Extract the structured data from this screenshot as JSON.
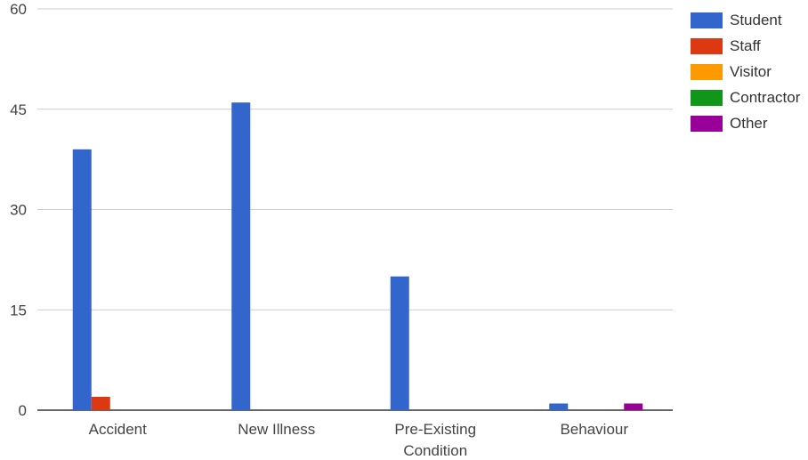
{
  "chart_data": {
    "type": "bar",
    "title": "",
    "xlabel": "",
    "ylabel": "",
    "categories": [
      "Accident",
      "New Illness",
      "Pre-Existing Condition",
      "Behaviour"
    ],
    "category_lines": [
      [
        "Accident"
      ],
      [
        "New Illness"
      ],
      [
        "Pre-Existing",
        "Condition"
      ],
      [
        "Behaviour"
      ]
    ],
    "series": [
      {
        "name": "Student",
        "color": "#3366cc",
        "values": [
          39,
          46,
          20,
          1
        ]
      },
      {
        "name": "Staff",
        "color": "#dc3912",
        "values": [
          2,
          0,
          0,
          0
        ]
      },
      {
        "name": "Visitor",
        "color": "#ff9900",
        "values": [
          0,
          0,
          0,
          0
        ]
      },
      {
        "name": "Contractor",
        "color": "#109618",
        "values": [
          0,
          0,
          0,
          0
        ]
      },
      {
        "name": "Other",
        "color": "#990099",
        "values": [
          0,
          0,
          0,
          1
        ]
      }
    ],
    "ylim": [
      0,
      60
    ],
    "yticks": [
      0,
      15,
      30,
      45,
      60
    ],
    "grid": true,
    "legend_position": "right"
  }
}
